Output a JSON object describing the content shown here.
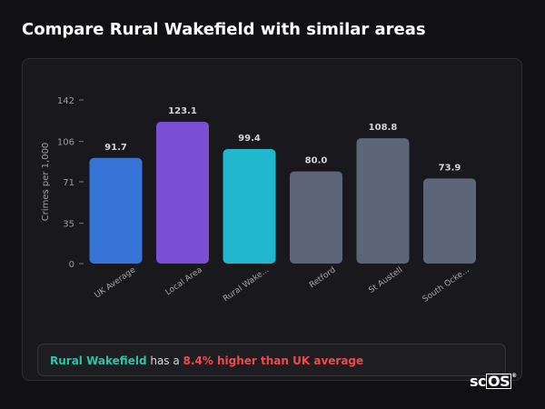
{
  "title": "Compare Rural Wakefield with similar areas",
  "chart_data": {
    "type": "bar",
    "ylabel": "Crimes per 1,000",
    "ylim": [
      0,
      142
    ],
    "yticks": [
      0,
      35,
      71,
      106,
      142
    ],
    "categories": [
      "UK Average",
      "Local Area",
      "Rural Wake...",
      "Retford",
      "St Austell",
      "South Ocke..."
    ],
    "values": [
      91.7,
      123.1,
      99.4,
      80.0,
      108.8,
      73.9
    ],
    "value_labels": [
      "91.7",
      "123.1",
      "99.4",
      "80.0",
      "108.8",
      "73.9"
    ],
    "colors": [
      "#3674d8",
      "#7b4fd4",
      "#21b7cf",
      "#5c6678",
      "#5c6678",
      "#5c6678"
    ]
  },
  "summary": {
    "area": "Rural Wakefield",
    "middle": " has a ",
    "difference": "8.4% higher than UK average"
  },
  "logo": {
    "text_a": "sc",
    "text_b": "OS",
    "mark": "®"
  }
}
